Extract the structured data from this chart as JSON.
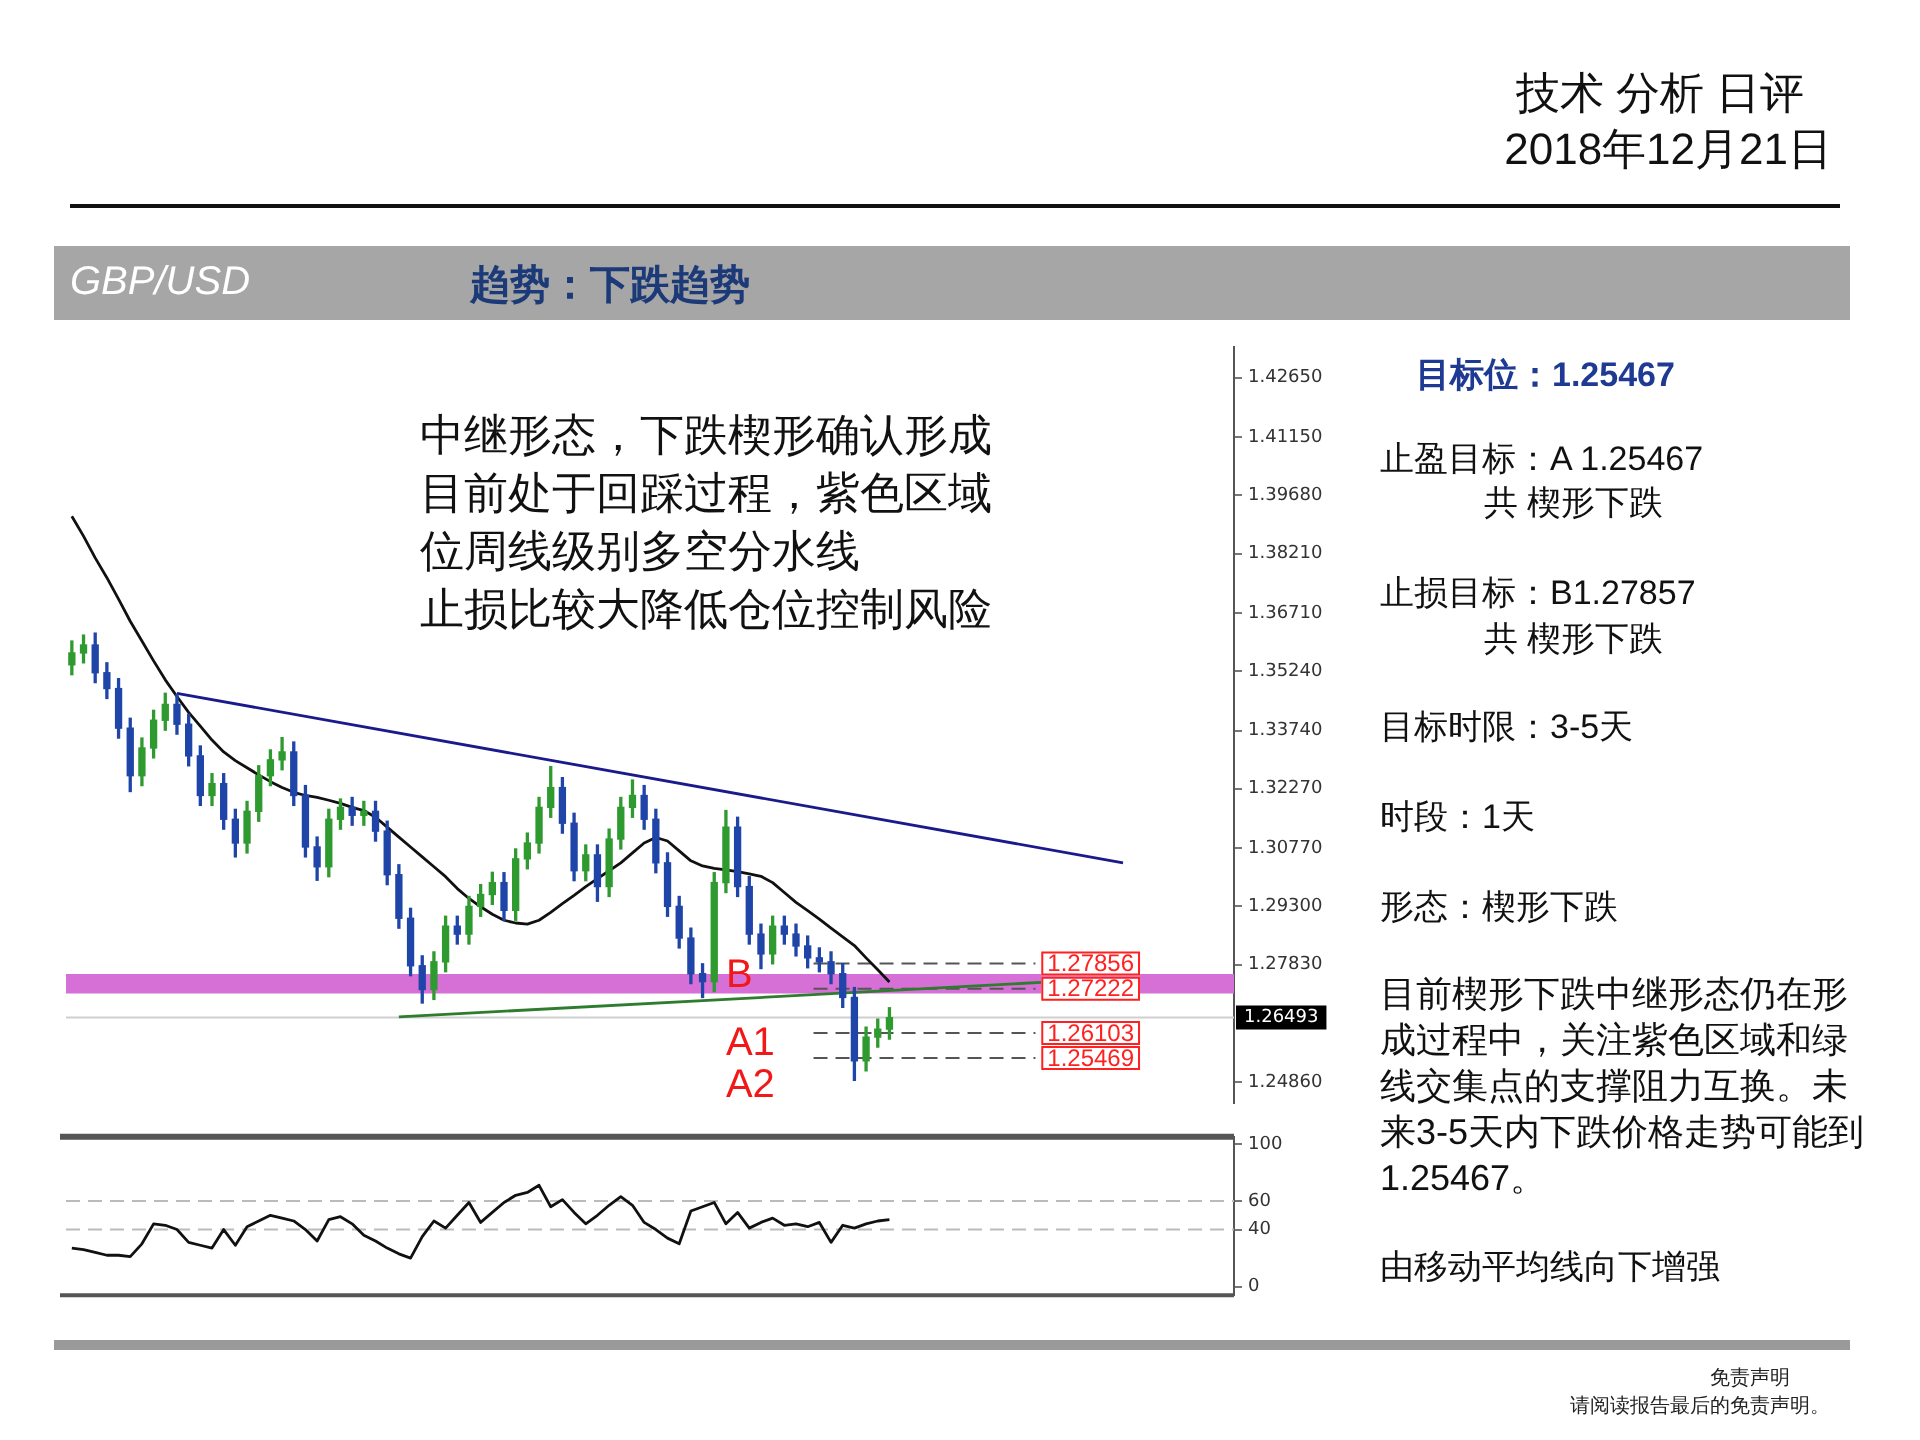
{
  "chart_data": [
    {
      "type": "other",
      "title": "技术 分析 日评",
      "subtitle": "2018年12月21日",
      "annotations": [
        "免责声明",
        "请阅读报告最后的免责声明。"
      ]
    },
    {
      "type": "candlestick",
      "title": "GBP/USD",
      "subtitle": "趋势：下跌趋势",
      "categories": [
        null,
        null,
        null,
        null,
        null,
        null,
        null,
        null,
        null,
        null,
        null,
        null,
        null,
        null,
        null,
        null,
        null,
        null,
        null,
        null,
        null,
        null,
        null,
        null,
        null,
        null,
        null,
        null,
        null,
        null,
        null,
        null,
        null,
        null,
        null,
        null,
        null,
        null,
        null,
        null,
        null,
        null,
        null,
        null,
        null,
        null,
        null,
        null,
        null,
        null,
        null,
        null,
        null,
        null,
        null,
        null,
        null,
        null,
        null,
        null,
        null,
        null,
        null,
        null,
        null,
        null,
        null,
        null,
        null,
        null,
        null,
        null,
        null,
        null,
        null,
        null,
        null,
        null,
        null,
        null,
        null,
        null,
        null,
        null,
        null,
        null,
        null,
        null,
        null,
        null,
        null,
        null,
        null,
        null,
        null,
        null,
        null,
        null,
        null,
        null
      ],
      "ohlc": [
        [
          1.354,
          1.36,
          1.3515,
          1.357
        ],
        [
          1.357,
          1.3615,
          1.3545,
          1.359
        ],
        [
          1.359,
          1.362,
          1.3495,
          1.352
        ],
        [
          1.352,
          1.3545,
          1.3455,
          1.348
        ],
        [
          1.348,
          1.3505,
          1.3355,
          1.338
        ],
        [
          1.338,
          1.3405,
          1.322,
          1.326
        ],
        [
          1.326,
          1.3355,
          1.3235,
          1.333
        ],
        [
          1.333,
          1.3425,
          1.3305,
          1.34
        ],
        [
          1.34,
          1.3468,
          1.3375,
          1.344
        ],
        [
          1.344,
          1.3465,
          1.3365,
          1.339
        ],
        [
          1.339,
          1.3415,
          1.3285,
          1.331
        ],
        [
          1.331,
          1.3335,
          1.3185,
          1.321
        ],
        [
          1.321,
          1.3265,
          1.3185,
          1.324
        ],
        [
          1.324,
          1.3265,
          1.3125,
          1.315
        ],
        [
          1.315,
          1.3175,
          1.3055,
          1.309
        ],
        [
          1.309,
          1.3195,
          1.3065,
          1.317
        ],
        [
          1.317,
          1.3285,
          1.3145,
          1.326
        ],
        [
          1.326,
          1.3325,
          1.3235,
          1.33
        ],
        [
          1.33,
          1.3356,
          1.3275,
          1.332
        ],
        [
          1.332,
          1.3345,
          1.3185,
          1.321
        ],
        [
          1.321,
          1.3235,
          1.3055,
          1.308
        ],
        [
          1.308,
          1.3105,
          1.2996,
          1.303
        ],
        [
          1.303,
          1.3175,
          1.3005,
          1.315
        ],
        [
          1.315,
          1.3201,
          1.3125,
          1.318
        ],
        [
          1.318,
          1.3205,
          1.3135,
          1.316
        ],
        [
          1.316,
          1.3195,
          1.3135,
          1.317
        ],
        [
          1.317,
          1.3195,
          1.3095,
          1.312
        ],
        [
          1.312,
          1.3145,
          1.2985,
          1.301
        ],
        [
          1.301,
          1.3035,
          1.2875,
          1.29
        ],
        [
          1.29,
          1.2925,
          1.2755,
          1.278
        ],
        [
          1.278,
          1.2805,
          1.2686,
          1.272
        ],
        [
          1.272,
          1.2815,
          1.2695,
          1.279
        ],
        [
          1.279,
          1.2905,
          1.2765,
          1.288
        ],
        [
          1.288,
          1.2905,
          1.2835,
          1.286
        ],
        [
          1.286,
          1.2955,
          1.2835,
          1.293
        ],
        [
          1.293,
          1.2985,
          1.2905,
          1.296
        ],
        [
          1.296,
          1.3016,
          1.2935,
          1.299
        ],
        [
          1.299,
          1.3015,
          1.2895,
          1.292
        ],
        [
          1.292,
          1.3075,
          1.2895,
          1.305
        ],
        [
          1.305,
          1.3115,
          1.3025,
          1.309
        ],
        [
          1.309,
          1.3205,
          1.3065,
          1.318
        ],
        [
          1.318,
          1.3283,
          1.3155,
          1.323
        ],
        [
          1.323,
          1.3255,
          1.3115,
          1.314
        ],
        [
          1.314,
          1.3165,
          1.2995,
          1.302
        ],
        [
          1.302,
          1.3085,
          1.2995,
          1.306
        ],
        [
          1.306,
          1.3085,
          1.2943,
          1.298
        ],
        [
          1.298,
          1.3125,
          1.2955,
          1.31
        ],
        [
          1.31,
          1.3205,
          1.3075,
          1.318
        ],
        [
          1.318,
          1.3249,
          1.3155,
          1.321
        ],
        [
          1.321,
          1.3235,
          1.3125,
          1.315
        ],
        [
          1.315,
          1.3175,
          1.3015,
          1.304
        ],
        [
          1.304,
          1.3065,
          1.2905,
          1.293
        ],
        [
          1.293,
          1.2955,
          1.2825,
          1.285
        ],
        [
          1.285,
          1.2875,
          1.2735,
          1.276
        ],
        [
          1.276,
          1.2785,
          1.27,
          1.274
        ],
        [
          1.274,
          1.3015,
          1.2715,
          1.299
        ],
        [
          1.299,
          1.3172,
          1.2965,
          1.313
        ],
        [
          1.313,
          1.3155,
          1.2955,
          1.298
        ],
        [
          1.298,
          1.3005,
          1.2835,
          1.286
        ],
        [
          1.286,
          1.2885,
          1.2773,
          1.281
        ],
        [
          1.281,
          1.2905,
          1.2785,
          1.288
        ],
        [
          1.288,
          1.2905,
          1.2835,
          1.286
        ],
        [
          1.286,
          1.2885,
          1.2805,
          1.283
        ],
        [
          1.283,
          1.2855,
          1.2775,
          1.28
        ],
        [
          1.28,
          1.2825,
          1.2765,
          1.279
        ],
        [
          1.279,
          1.2815,
          1.2735,
          1.276
        ],
        [
          1.276,
          1.2785,
          1.2675,
          1.27
        ],
        [
          1.27,
          1.2725,
          1.2491,
          1.254
        ],
        [
          1.254,
          1.2625,
          1.2515,
          1.26
        ],
        [
          1.26,
          1.2645,
          1.2575,
          1.262
        ],
        [
          1.262,
          1.2674,
          1.2595,
          1.2649
        ],
        null,
        null,
        null,
        null,
        null,
        null,
        null,
        null,
        null,
        null,
        null,
        null,
        null,
        null,
        null,
        null,
        null,
        null,
        null,
        null,
        null,
        null,
        null,
        null,
        null,
        null,
        null,
        null,
        null
      ],
      "colors": [
        "#2f9a2f",
        "#2f9a2f",
        "#1f45a8",
        "#1f45a8",
        "#1f45a8",
        "#1f45a8",
        "#2f9a2f",
        "#2f9a2f",
        "#2f9a2f",
        "#1f45a8",
        "#1f45a8",
        "#1f45a8",
        "#2f9a2f",
        "#1f45a8",
        "#1f45a8",
        "#2f9a2f",
        "#2f9a2f",
        "#2f9a2f",
        "#2f9a2f",
        "#1f45a8",
        "#1f45a8",
        "#1f45a8",
        "#2f9a2f",
        "#2f9a2f",
        "#1f45a8",
        "#2f9a2f",
        "#1f45a8",
        "#1f45a8",
        "#1f45a8",
        "#1f45a8",
        "#1f45a8",
        "#2f9a2f",
        "#2f9a2f",
        "#1f45a8",
        "#2f9a2f",
        "#2f9a2f",
        "#2f9a2f",
        "#1f45a8",
        "#2f9a2f",
        "#2f9a2f",
        "#2f9a2f",
        "#2f9a2f",
        "#1f45a8",
        "#1f45a8",
        "#2f9a2f",
        "#1f45a8",
        "#2f9a2f",
        "#2f9a2f",
        "#2f9a2f",
        "#1f45a8",
        "#1f45a8",
        "#1f45a8",
        "#1f45a8",
        "#1f45a8",
        "#1f45a8",
        "#2f9a2f",
        "#2f9a2f",
        "#1f45a8",
        "#1f45a8",
        "#1f45a8",
        "#2f9a2f",
        "#1f45a8",
        "#1f45a8",
        "#1f45a8",
        "#1f45a8",
        "#1f45a8",
        "#1f45a8",
        "#1f45a8",
        "#2f9a2f",
        "#2f9a2f",
        "#2f9a2f",
        null,
        null,
        null,
        null,
        null,
        null,
        null,
        null,
        null,
        null,
        null,
        null,
        null,
        null,
        null,
        null,
        null,
        null,
        null,
        null,
        null,
        null,
        null,
        null,
        null,
        null,
        null,
        null,
        null
      ],
      "series": [
        {
          "type": "line",
          "color": "#111111",
          "values": [
            1.3915,
            1.3865,
            1.381,
            1.376,
            1.3706,
            1.365,
            1.36,
            1.355,
            1.3502,
            1.346,
            1.342,
            1.3385,
            1.335,
            1.332,
            1.3298,
            1.328,
            1.3262,
            1.3245,
            1.323,
            1.3218,
            1.321,
            1.3205,
            1.3198,
            1.319,
            1.318,
            1.3172,
            1.3155,
            1.313,
            1.3105,
            1.308,
            1.3055,
            1.303,
            1.3005,
            1.2975,
            1.295,
            1.2929,
            1.291,
            1.2895,
            1.2888,
            1.2885,
            1.2895,
            1.2915,
            1.2937,
            1.2958,
            1.298,
            1.3,
            1.302,
            1.304,
            1.3065,
            1.309,
            1.3104,
            1.3095,
            1.307,
            1.3045,
            1.3032,
            1.3026,
            1.3022,
            1.3018,
            1.3012,
            1.3006,
            1.299,
            1.2965,
            1.294,
            1.2919,
            1.2898,
            1.2875,
            1.2853,
            1.2831,
            1.28,
            1.277,
            1.2739,
            null,
            null,
            null,
            null,
            null,
            null,
            null,
            null,
            null,
            null,
            null,
            null,
            null,
            null,
            null,
            null,
            null,
            null,
            null,
            null,
            null,
            null,
            null,
            null,
            null,
            null,
            null,
            null,
            null
          ]
        },
        {
          "type": "line",
          "color": "#1a1a8c",
          "values": [
            null,
            null,
            null,
            null,
            null,
            null,
            null,
            null,
            null,
            1.3468,
            null,
            null,
            null,
            null,
            null,
            null,
            null,
            null,
            null,
            null,
            null,
            null,
            null,
            null,
            null,
            null,
            null,
            null,
            null,
            null,
            null,
            null,
            null,
            null,
            null,
            null,
            null,
            null,
            null,
            null,
            null,
            null,
            null,
            null,
            null,
            null,
            null,
            null,
            null,
            null,
            null,
            null,
            null,
            null,
            null,
            null,
            null,
            null,
            null,
            null,
            null,
            null,
            null,
            null,
            null,
            null,
            null,
            null,
            null,
            null,
            null,
            null,
            null,
            null,
            null,
            null,
            null,
            null,
            null,
            null,
            null,
            null,
            null,
            null,
            null,
            null,
            null,
            null,
            null,
            null,
            1.304,
            null,
            null,
            null,
            null,
            null,
            null,
            null,
            null,
            null
          ]
        },
        {
          "type": "line",
          "color": "#2e7d2e",
          "values": [
            null,
            null,
            null,
            null,
            null,
            null,
            null,
            null,
            null,
            null,
            null,
            null,
            null,
            null,
            null,
            null,
            null,
            null,
            null,
            null,
            null,
            null,
            null,
            null,
            null,
            null,
            null,
            null,
            1.2651,
            null,
            null,
            null,
            null,
            null,
            null,
            null,
            null,
            null,
            null,
            null,
            null,
            null,
            null,
            null,
            null,
            null,
            null,
            null,
            null,
            null,
            null,
            null,
            null,
            null,
            null,
            null,
            null,
            null,
            null,
            null,
            null,
            null,
            null,
            null,
            null,
            null,
            null,
            null,
            null,
            null,
            null,
            null,
            null,
            null,
            null,
            null,
            null,
            null,
            null,
            null,
            null,
            null,
            null,
            1.2738,
            null,
            null,
            null,
            null,
            null,
            null,
            null,
            null,
            null,
            null,
            null,
            null,
            null,
            null,
            null,
            null
          ]
        }
      ],
      "ylim": [
        1.2433,
        1.4343
      ],
      "yticks": [
        {
          "value": 1.2486,
          "label": "1.24860"
        },
        {
          "value": 1.2783,
          "label": "1.27830"
        },
        {
          "value": 1.293,
          "label": "1.29300"
        },
        {
          "value": 1.3077,
          "label": "1.30770"
        },
        {
          "value": 1.3227,
          "label": "1.32270"
        },
        {
          "value": 1.3374,
          "label": "1.33740"
        },
        {
          "value": 1.3524,
          "label": "1.35240"
        },
        {
          "value": 1.3671,
          "label": "1.36710"
        },
        {
          "value": 1.3821,
          "label": "1.38210"
        },
        {
          "value": 1.3968,
          "label": "1.39680"
        },
        {
          "value": 1.4115,
          "label": "1.41150"
        },
        {
          "value": 1.4265,
          "label": "1.42650"
        }
      ],
      "bands": [
        {
          "axis": "y",
          "from": 1.271,
          "to": 1.2759,
          "color": "#d670d6"
        }
      ],
      "ref_lines": [
        {
          "axis": "y",
          "value": 1.27856,
          "label": "1.27856",
          "color": "#555555",
          "line_style": "dashed"
        },
        {
          "axis": "y",
          "value": 1.27222,
          "label": "1.27222",
          "color": "#555555",
          "line_style": "dashed"
        },
        {
          "axis": "y",
          "value": 1.26103,
          "label": "1.26103",
          "color": "#555555",
          "line_style": "dashed"
        },
        {
          "axis": "y",
          "value": 1.25469,
          "label": "1.25469",
          "color": "#555555",
          "line_style": "dashed"
        },
        {
          "axis": "y",
          "value": 1.26493,
          "label": "1.26493",
          "color": "#cfcfcf",
          "line_style": "solid"
        }
      ],
      "annotations": [
        "中继形态，下跌楔形确认形成",
        "目前处于回踩过程，紫色区域",
        "位周线级别多空分水线",
        "止损比较大降低仓位控制风险",
        "B",
        "A1",
        "A2"
      ],
      "tick_labels": "y",
      "grid": false,
      "legend": false
    },
    {
      "type": "line",
      "color": "#111111",
      "categories": [
        null,
        null,
        null,
        null,
        null,
        null,
        null,
        null,
        null,
        null,
        null,
        null,
        null,
        null,
        null,
        null,
        null,
        null,
        null,
        null,
        null,
        null,
        null,
        null,
        null,
        null,
        null,
        null,
        null,
        null,
        null,
        null,
        null,
        null,
        null,
        null,
        null,
        null,
        null,
        null,
        null,
        null,
        null,
        null,
        null,
        null,
        null,
        null,
        null,
        null,
        null,
        null,
        null,
        null,
        null,
        null,
        null,
        null,
        null,
        null,
        null,
        null,
        null,
        null,
        null,
        null,
        null,
        null,
        null,
        null,
        null,
        null,
        null,
        null,
        null,
        null,
        null,
        null,
        null,
        null,
        null,
        null,
        null,
        null,
        null,
        null,
        null,
        null,
        null,
        null,
        null,
        null,
        null,
        null,
        null,
        null,
        null,
        null,
        null,
        null
      ],
      "values": [
        27,
        26,
        24,
        22,
        22,
        21,
        30,
        44,
        43,
        40,
        31,
        29,
        27,
        40,
        29,
        42,
        46,
        50,
        48,
        46,
        40,
        32,
        47,
        49,
        44,
        36,
        32,
        27,
        23,
        20,
        35,
        46,
        41,
        50,
        59,
        45,
        52,
        59,
        64,
        66,
        71,
        56,
        61,
        52,
        44,
        50,
        57,
        63,
        57,
        45,
        40,
        34,
        30,
        53,
        56,
        59,
        44,
        52,
        41,
        45,
        48,
        43,
        44,
        42,
        45,
        31,
        43,
        41,
        44,
        46,
        47,
        null,
        null,
        null,
        null,
        null,
        null,
        null,
        null,
        null,
        null,
        null,
        null,
        null,
        null,
        null,
        null,
        null,
        null,
        null,
        null,
        null,
        null,
        null,
        null,
        null,
        null,
        null,
        null,
        null
      ],
      "ylim": [
        -6,
        105
      ],
      "yticks": [
        0,
        40,
        60,
        100
      ],
      "ref_lines": [
        {
          "axis": "y",
          "value": 40,
          "color": "#bbbbbb",
          "line_style": "dashed"
        },
        {
          "axis": "y",
          "value": 60,
          "color": "#bbbbbb",
          "line_style": "dashed"
        }
      ],
      "tick_labels": "y",
      "grid": false,
      "legend": false
    },
    {
      "type": "other",
      "title": "目标位：1.25467",
      "annotations": [
        "止盈目标：A 1.25467",
        "共 楔形下跌",
        "止损目标：B1.27857",
        "共 楔形下跌",
        "目标时限：3-5天",
        "时段：1天",
        "形态：楔形下跌",
        "目前楔形下跌中继形态仍在形成过程中，关注紫色区域和绿线交集点的支撑阻力互换。未来3-5天内下跌价格走势可能到1.25467。",
        "由移动平均线向下增强"
      ]
    }
  ]
}
